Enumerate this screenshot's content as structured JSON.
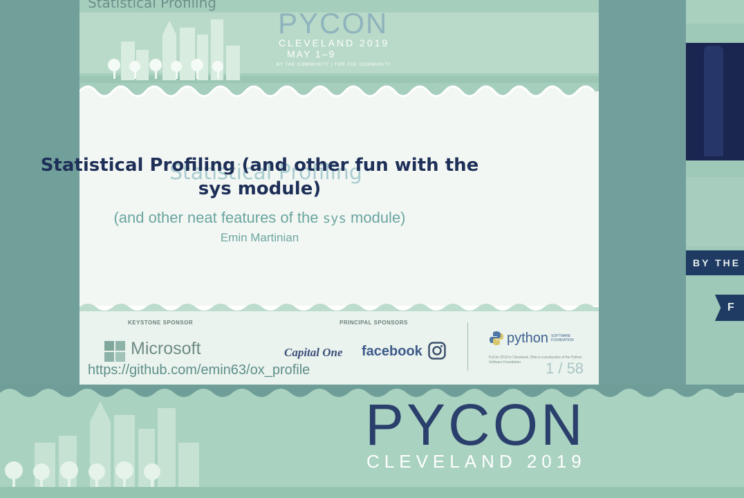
{
  "slide": {
    "header_title": "Statistical Profiling",
    "logo": {
      "word": "PYCON",
      "city_year": "CLEVELAND 2019",
      "dates": "MAY 1–9",
      "motto": "BY THE COMMUNITY | FOR THE COMMUNITY"
    },
    "heading_ghost": "Statistical Profiling",
    "heading_line1": "Statistical Profiling (and other fun with the",
    "heading_line2": "sys module)",
    "subtitle_before": "(and other neat features of the ",
    "subtitle_code": "sys",
    "subtitle_after": " module)",
    "author": "Emin Martinian",
    "keystone_label": "KEYSTONE SPONSOR",
    "principal_label": "PRINCIPAL SPONSORS",
    "microsoft": "Microsoft",
    "capital_one": "Capital One",
    "facebook": "facebook",
    "python_name": "python",
    "python_sf_line1": "SOFTWARE",
    "python_sf_line2": "FOUNDATION",
    "python_credit": "PyCon 2019 in Cleveland, Ohio is a production of the Python Software Foundation",
    "url": "https://github.com/emin63/ox_profile",
    "page_counter": "1 / 58"
  },
  "right_panel": {
    "banner_text": "BY THE",
    "flag_letter": "F"
  },
  "bottom_banner": {
    "word": "PYCON",
    "city_year": "CLEVELAND 2019"
  },
  "colors": {
    "navy": "#1e2f58",
    "teal_text": "#6aa59f",
    "mint_bg": "#a9d2c0"
  }
}
